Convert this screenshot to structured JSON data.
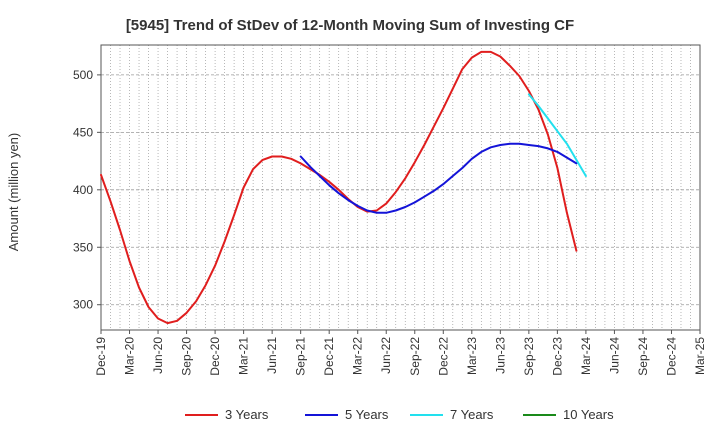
{
  "chart_data": {
    "type": "line",
    "title": "[5945]  Trend of StDev of 12-Month Moving Sum of Investing CF",
    "xlabel": "",
    "ylabel": "Amount (million yen)",
    "ylim": [
      278,
      526
    ],
    "yticks": [
      300,
      350,
      400,
      450,
      500
    ],
    "x_tick_labels": [
      "Dec-19",
      "Mar-20",
      "Jun-20",
      "Sep-20",
      "Dec-20",
      "Mar-21",
      "Jun-21",
      "Sep-21",
      "Dec-21",
      "Mar-22",
      "Jun-22",
      "Sep-22",
      "Dec-22",
      "Mar-23",
      "Jun-23",
      "Sep-23",
      "Dec-23",
      "Mar-24",
      "Jun-24",
      "Sep-24",
      "Dec-24",
      "Mar-25"
    ],
    "grid": true,
    "legend_position": "bottom",
    "series": [
      {
        "name": "3 Years",
        "color": "#e01e1e",
        "start_month_index": 0,
        "values": [
          413,
          390,
          365,
          338,
          315,
          298,
          288,
          284,
          286,
          293,
          303,
          317,
          334,
          355,
          378,
          402,
          418,
          426,
          429,
          429,
          427,
          423,
          418,
          413,
          407,
          400,
          392,
          385,
          381,
          382,
          388,
          398,
          410,
          424,
          439,
          455,
          471,
          488,
          505,
          515,
          520,
          520,
          516,
          508,
          499,
          486,
          470,
          448,
          419,
          380,
          347
        ]
      },
      {
        "name": "5 Years",
        "color": "#1414d8",
        "start_month_index": 21,
        "values": [
          429,
          420,
          412,
          404,
          397,
          391,
          386,
          382,
          380,
          380,
          382,
          385,
          389,
          394,
          399,
          405,
          412,
          419,
          427,
          433,
          437,
          439,
          440,
          440,
          439,
          438,
          436,
          433,
          428,
          423
        ]
      },
      {
        "name": "7 Years",
        "color": "#22e0ee",
        "start_month_index": 45,
        "values": [
          483,
          473,
          462,
          451,
          440,
          426,
          412
        ]
      },
      {
        "name": "10 Years",
        "color": "#1a8a1a",
        "start_month_index": 0,
        "values": []
      }
    ]
  }
}
